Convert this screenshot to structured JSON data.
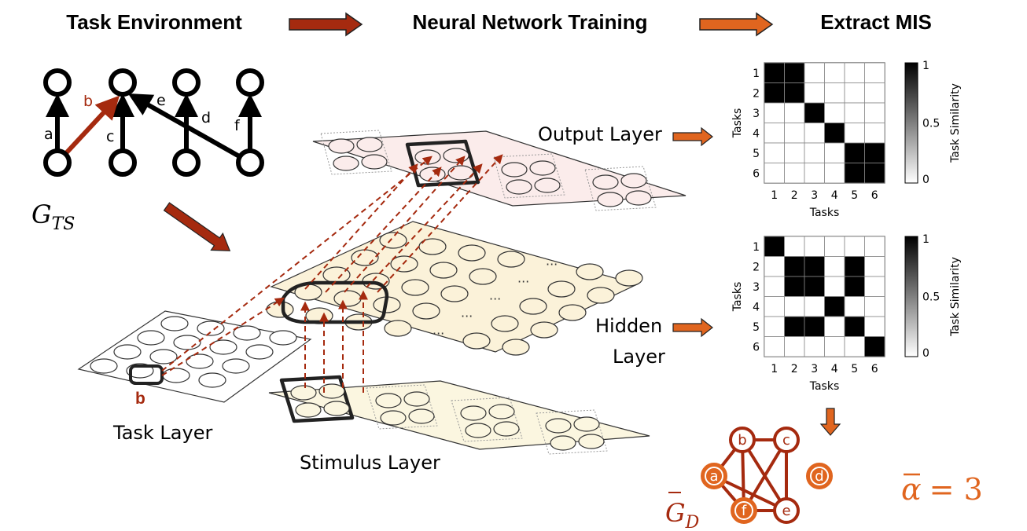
{
  "headers": {
    "task_environment": "Task Environment",
    "neural_network_training": "Neural Network Training",
    "extract_mis": "Extract MIS"
  },
  "task_graph": {
    "label_main": "G",
    "label_sub": "TS",
    "edges": [
      {
        "label": "a",
        "color": "#000000"
      },
      {
        "label": "b",
        "color": "#a52a0f"
      },
      {
        "label": "c",
        "color": "#000000"
      },
      {
        "label": "d",
        "color": "#000000"
      },
      {
        "label": "e",
        "color": "#000000"
      },
      {
        "label": "f",
        "color": "#000000"
      }
    ]
  },
  "layers": {
    "output": "Output Layer",
    "hidden_line1": "Hidden",
    "hidden_line2": "Layer",
    "task": "Task Layer",
    "stimulus": "Stimulus Layer",
    "task_unit_label": "b"
  },
  "matrices": {
    "axis_label": "Tasks",
    "colorbar_label": "Task Similarity",
    "colorbar_ticks": [
      "1",
      "0.5",
      "0"
    ],
    "tick_labels": [
      "1",
      "2",
      "3",
      "4",
      "5",
      "6"
    ],
    "output_layer": [
      [
        1,
        1,
        0,
        0,
        0,
        0
      ],
      [
        1,
        1,
        0,
        0,
        0,
        0
      ],
      [
        0,
        0,
        1,
        0,
        0,
        0
      ],
      [
        0,
        0,
        0,
        1,
        0,
        0
      ],
      [
        0,
        0,
        0,
        0,
        1,
        1
      ],
      [
        0,
        0,
        0,
        0,
        1,
        1
      ]
    ],
    "hidden_layer": [
      [
        1,
        0,
        0,
        0,
        0,
        0
      ],
      [
        0,
        1,
        1,
        0,
        1,
        0
      ],
      [
        0,
        1,
        1,
        0,
        1,
        0
      ],
      [
        0,
        0,
        0,
        1,
        0,
        0
      ],
      [
        0,
        1,
        1,
        0,
        1,
        0
      ],
      [
        0,
        0,
        0,
        0,
        0,
        1
      ]
    ]
  },
  "dependency_graph": {
    "label_main": "G",
    "label_sub": "D",
    "nodes": [
      "a",
      "b",
      "c",
      "d",
      "e",
      "f"
    ],
    "alpha_label": "α",
    "alpha_value": "= 3",
    "dark_color": "#a52a0f",
    "light_color": "#e0651f"
  },
  "colors": {
    "dark_red": "#a52a0f",
    "orange": "#e0651f",
    "output_layer_fill": "#fbeceb",
    "hidden_layer_fill": "#fbf2d9",
    "stimulus_layer_fill": "#fbf6e0",
    "task_layer_fill": "#ffffff"
  }
}
